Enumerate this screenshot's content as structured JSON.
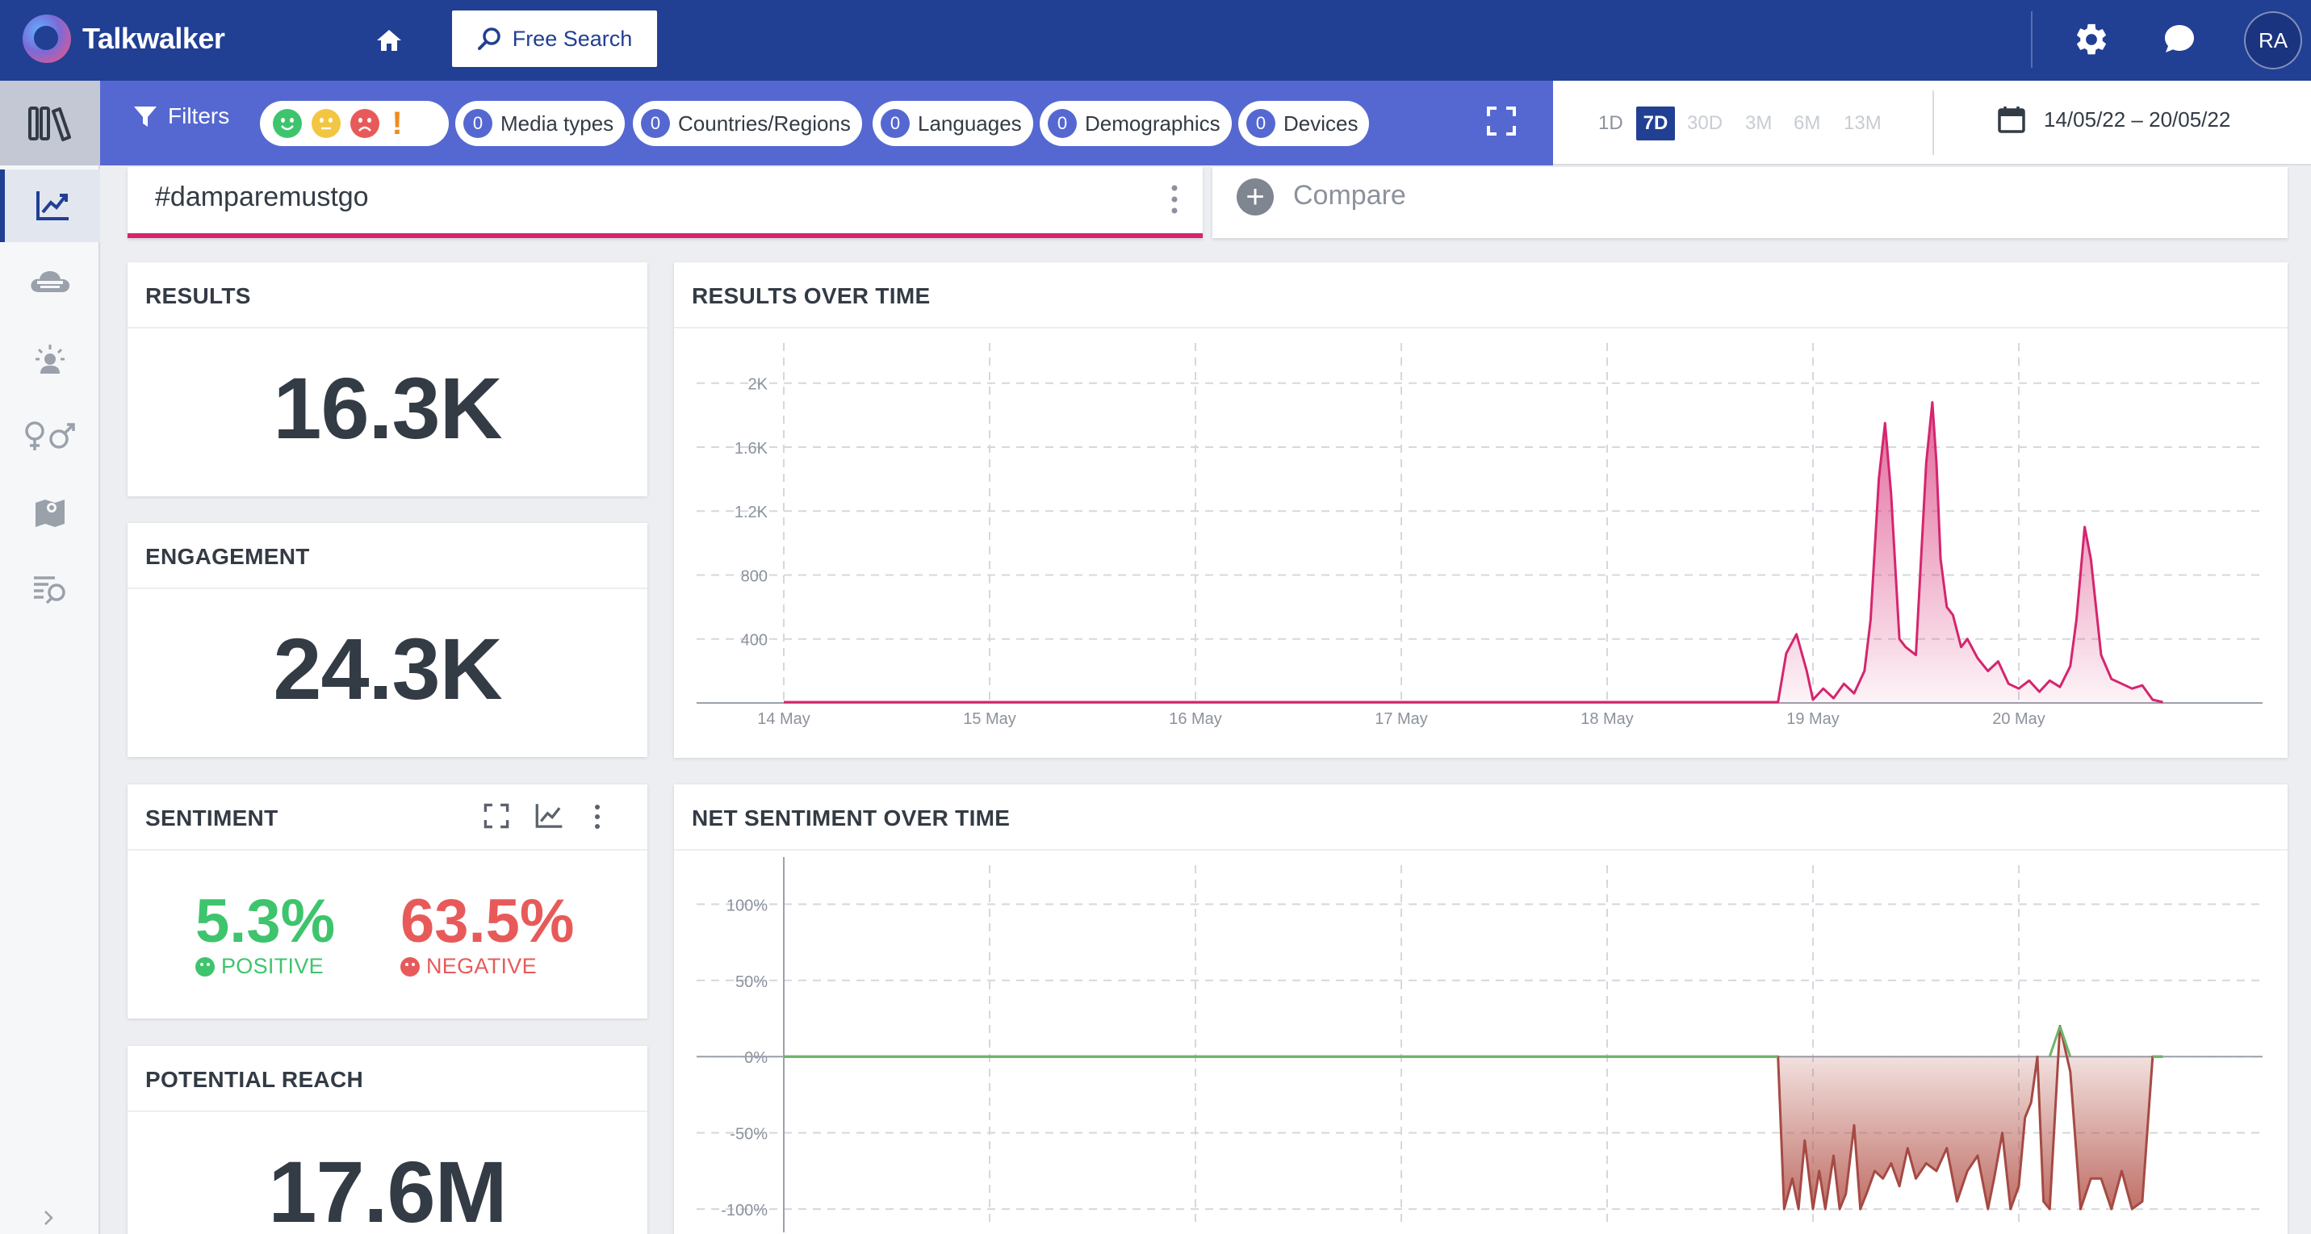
{
  "app": {
    "name": "Talkwalker"
  },
  "topbar": {
    "free_search_label": "Free Search",
    "avatar_initials": "RA"
  },
  "filters": {
    "label": "Filters",
    "pills": [
      {
        "count": "0",
        "label": "Media types"
      },
      {
        "count": "0",
        "label": "Countries/Regions"
      },
      {
        "count": "0",
        "label": "Languages"
      },
      {
        "count": "0",
        "label": "Demographics"
      },
      {
        "count": "0",
        "label": "Devices"
      }
    ]
  },
  "date": {
    "ranges": [
      "1D",
      "7D",
      "30D",
      "3M",
      "6M",
      "13M"
    ],
    "active_range": "7D",
    "range_text": "14/05/22 – 20/05/22"
  },
  "query": {
    "label": "#damparemustgo",
    "compare_label": "Compare"
  },
  "cards": {
    "results": {
      "title": "RESULTS",
      "value": "16.3K"
    },
    "engagement": {
      "title": "ENGAGEMENT",
      "value": "24.3K"
    },
    "sentiment": {
      "title": "SENTIMENT",
      "positive_value": "5.3%",
      "positive_label": "POSITIVE",
      "negative_value": "63.5%",
      "negative_label": "NEGATIVE"
    },
    "reach": {
      "title": "POTENTIAL REACH",
      "value": "17.6M"
    },
    "results_over_time": {
      "title": "RESULTS OVER TIME"
    },
    "net_sentiment_over_time": {
      "title": "NET SENTIMENT OVER TIME"
    }
  },
  "colors": {
    "nav": "#213f93",
    "filterbar": "#5568d1",
    "accent_pink": "#d5256e",
    "positive": "#3ec46d",
    "negative": "#e85a5a",
    "net_negative_fill": "#b5564c"
  },
  "icons": [
    "home-icon",
    "search-icon",
    "gear-icon",
    "chat-icon",
    "filter-icon",
    "expand-icon",
    "calendar-icon",
    "more-vertical-icon",
    "plus-icon",
    "line-chart-icon"
  ],
  "sidebar": {
    "items": [
      "library-icon",
      "analytics-icon",
      "cloud-icon",
      "influencer-icon",
      "gender-icon",
      "map-icon",
      "list-search-icon"
    ]
  },
  "chart_data": [
    {
      "type": "area",
      "title": "RESULTS OVER TIME",
      "x_ticks": [
        "14 May",
        "15 May",
        "16 May",
        "17 May",
        "18 May",
        "19 May",
        "20 May"
      ],
      "y_ticks": [
        "400",
        "800",
        "1.2K",
        "1.6K",
        "2K"
      ],
      "ylim": [
        0,
        2150
      ],
      "x": [
        0,
        0.5,
        1,
        1.5,
        2,
        2.5,
        3,
        3.5,
        4,
        4.5,
        4.83,
        4.87,
        4.92,
        4.97,
        5.0,
        5.05,
        5.1,
        5.15,
        5.2,
        5.25,
        5.28,
        5.32,
        5.35,
        5.38,
        5.42,
        5.45,
        5.5,
        5.55,
        5.58,
        5.6,
        5.62,
        5.65,
        5.68,
        5.72,
        5.75,
        5.8,
        5.85,
        5.9,
        5.95,
        6.0,
        6.05,
        6.1,
        6.15,
        6.2,
        6.25,
        6.28,
        6.32,
        6.35,
        6.4,
        6.45,
        6.5,
        6.55,
        6.6,
        6.65,
        6.7
      ],
      "series": [
        {
          "values": [
            5,
            5,
            5,
            5,
            5,
            5,
            5,
            5,
            5,
            5,
            5,
            310,
            430,
            200,
            20,
            90,
            30,
            120,
            60,
            200,
            520,
            1400,
            1750,
            1300,
            400,
            350,
            300,
            1500,
            1880,
            1500,
            900,
            600,
            550,
            350,
            400,
            280,
            200,
            260,
            120,
            90,
            140,
            70,
            140,
            100,
            230,
            520,
            1100,
            900,
            300,
            150,
            120,
            90,
            110,
            20,
            5
          ]
        }
      ]
    },
    {
      "type": "area",
      "title": "NET SENTIMENT OVER TIME",
      "x_ticks": [
        "14 May",
        "15 May",
        "16 May",
        "17 May",
        "18 May",
        "19 May",
        "20 May"
      ],
      "y_ticks": [
        "100%",
        "50%",
        "0%",
        "-50%",
        "-100%"
      ],
      "ylim": [
        -110,
        115
      ],
      "x": [
        0,
        0.5,
        1,
        1.5,
        2,
        2.5,
        3,
        3.5,
        4,
        4.5,
        4.83,
        4.86,
        4.9,
        4.93,
        4.96,
        5.0,
        5.03,
        5.06,
        5.1,
        5.13,
        5.16,
        5.2,
        5.23,
        5.26,
        5.3,
        5.34,
        5.38,
        5.42,
        5.46,
        5.5,
        5.55,
        5.6,
        5.65,
        5.7,
        5.75,
        5.8,
        5.85,
        5.88,
        5.92,
        5.96,
        6.0,
        6.03,
        6.06,
        6.09,
        6.12,
        6.15,
        6.2,
        6.25,
        6.3,
        6.35,
        6.4,
        6.45,
        6.5,
        6.55,
        6.6,
        6.65,
        6.7
      ],
      "series": [
        {
          "values": [
            0,
            0,
            0,
            0,
            0,
            0,
            0,
            0,
            0,
            0,
            0,
            -100,
            -80,
            -100,
            -55,
            -100,
            -75,
            -100,
            -65,
            -100,
            -90,
            -45,
            -100,
            -90,
            -75,
            -80,
            -70,
            -85,
            -60,
            -80,
            -70,
            -75,
            -60,
            -95,
            -75,
            -65,
            -100,
            -80,
            -50,
            -100,
            -85,
            -40,
            -30,
            0,
            -95,
            -100,
            20,
            -10,
            -100,
            -80,
            -80,
            -100,
            -75,
            -100,
            -95,
            0,
            0
          ]
        }
      ]
    }
  ]
}
